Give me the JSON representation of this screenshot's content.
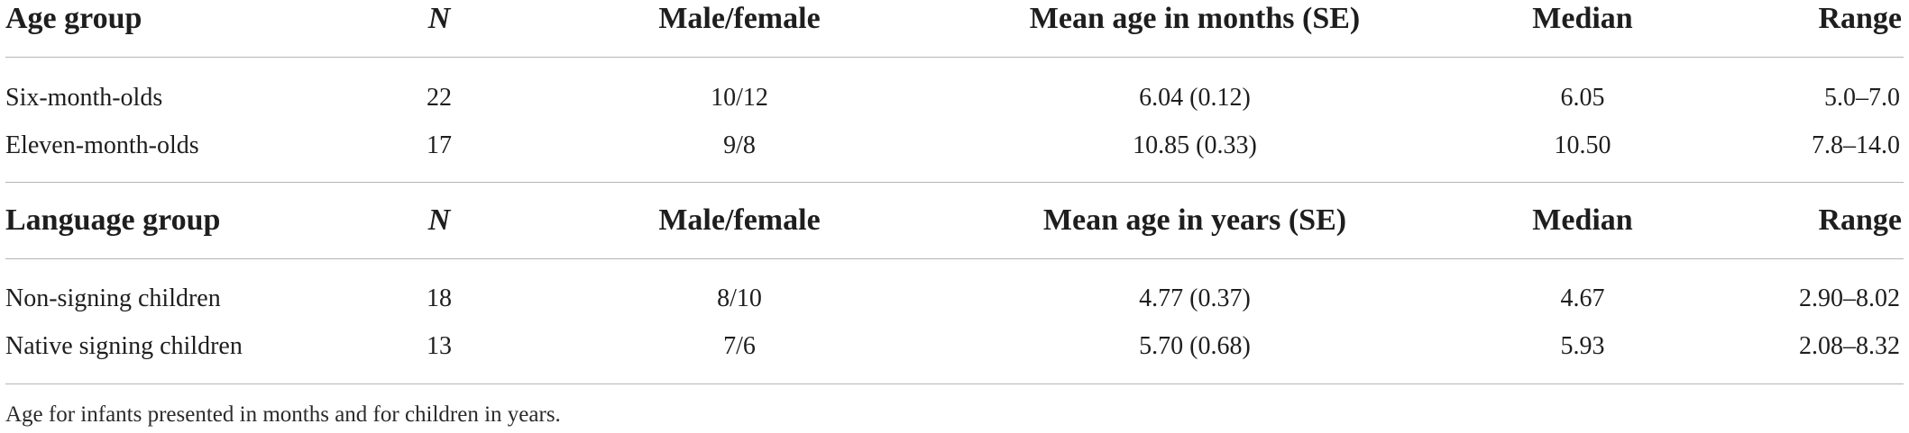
{
  "table": {
    "sections": [
      {
        "header": {
          "group": "Age group",
          "n": "N",
          "sex": "Male/female",
          "mean": "Mean age in months (SE)",
          "median": "Median",
          "range": "Range"
        },
        "rows": [
          {
            "group": "Six-month-olds",
            "n": "22",
            "sex": "10/12",
            "mean": "6.04 (0.12)",
            "median": "6.05",
            "range": "5.0–7.0"
          },
          {
            "group": "Eleven-month-olds",
            "n": "17",
            "sex": "9/8",
            "mean": "10.85 (0.33)",
            "median": "10.50",
            "range": "7.8–14.0"
          }
        ]
      },
      {
        "header": {
          "group": "Language group",
          "n": "N",
          "sex": "Male/female",
          "mean": "Mean age in years (SE)",
          "median": "Median",
          "range": "Range"
        },
        "rows": [
          {
            "group": "Non-signing children",
            "n": "18",
            "sex": "8/10",
            "mean": "4.77 (0.37)",
            "median": "4.67",
            "range": "2.90–8.02"
          },
          {
            "group": "Native signing children",
            "n": "13",
            "sex": "7/6",
            "mean": "5.70 (0.68)",
            "median": "5.93",
            "range": "2.08–8.32"
          }
        ]
      }
    ],
    "footnote": "Age for infants presented in months and for children in years."
  }
}
